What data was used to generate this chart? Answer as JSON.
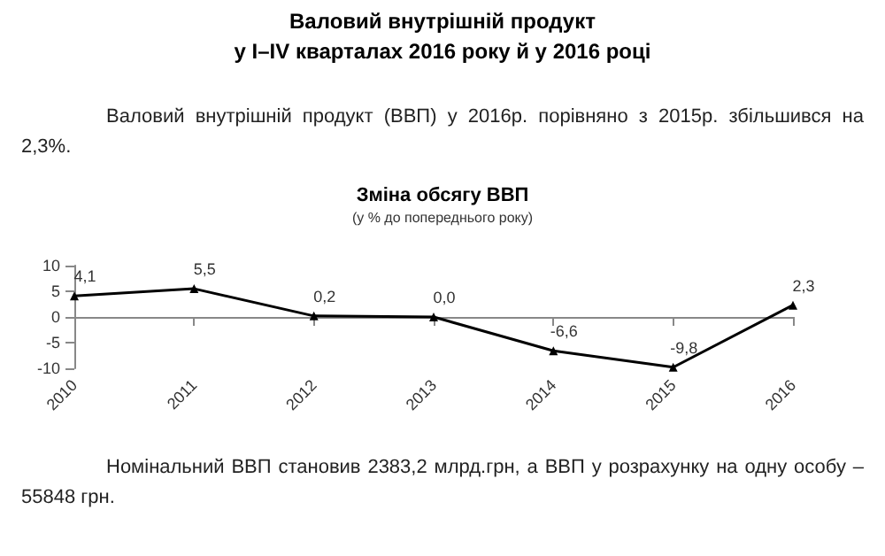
{
  "chart_data": {
    "type": "line",
    "title": "Зміна обсягу ВВП",
    "subtitle": "(у % до попереднього року)",
    "annotations": [
      "Валовий внутрішній продукт\nу I–IV кварталах 2016 року й у 2016 році",
      "Валовий внутрішній продукт (ВВП) у 2016р. порівняно з 2015р. збільшився на 2,3%.",
      "Номінальний ВВП становив 2383,2 млрд.грн, а ВВП у розрахунку на одну особу – 55848 грн."
    ],
    "categories": [
      "2010",
      "2011",
      "2012",
      "2013",
      "2014",
      "2015",
      "2016"
    ],
    "series": [
      {
        "color": "#000000",
        "values": [
          4.1,
          5.5,
          0.2,
          0.0,
          -6.6,
          -9.8,
          2.3
        ],
        "value_labels": [
          "4,1",
          "5,5",
          "0,2",
          "0,0",
          "-6,6",
          "-9,8",
          "2,3"
        ]
      }
    ],
    "ylim": [
      -10,
      10
    ],
    "yticks": [
      -10,
      -5,
      0,
      5,
      10
    ],
    "marker": "triangle",
    "line_style": "solid"
  }
}
